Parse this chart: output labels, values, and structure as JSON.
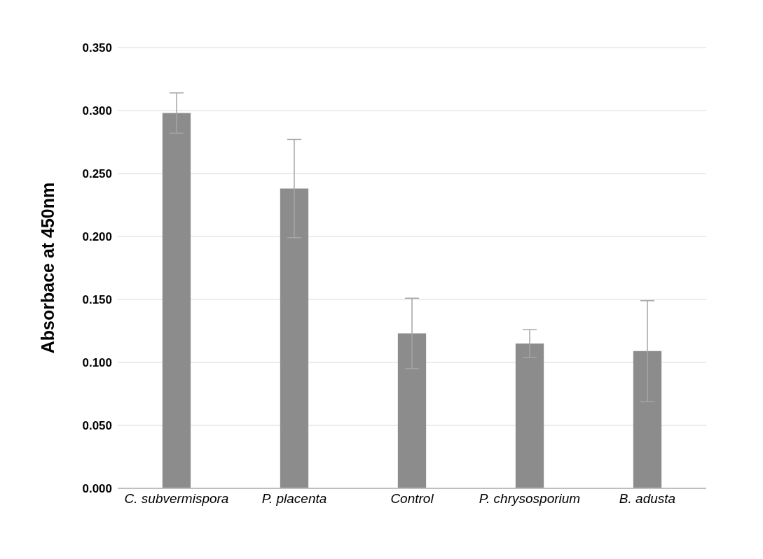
{
  "chart_data": {
    "type": "bar",
    "ylabel": "Absorbace at 450nm",
    "categories": [
      "C. subvermispora",
      "P. placenta",
      "Control",
      "P. chrysosporium",
      "B. adusta"
    ],
    "values": [
      0.298,
      0.238,
      0.123,
      0.115,
      0.109
    ],
    "errors": [
      0.016,
      0.039,
      0.028,
      0.011,
      0.04
    ],
    "color": "#8c8c8c",
    "ylim": [
      0,
      0.35
    ],
    "yticks": [
      {
        "value": 0,
        "label": "0.000"
      },
      {
        "value": 0.05,
        "label": "0.050"
      },
      {
        "value": 0.1,
        "label": "0.100"
      },
      {
        "value": 0.15,
        "label": "0.150"
      },
      {
        "value": 0.2,
        "label": "0.200"
      },
      {
        "value": 0.25,
        "label": "0.250"
      },
      {
        "value": 0.3,
        "label": "0.300"
      },
      {
        "value": 0.35,
        "label": "0.350"
      }
    ],
    "grid": "y"
  }
}
